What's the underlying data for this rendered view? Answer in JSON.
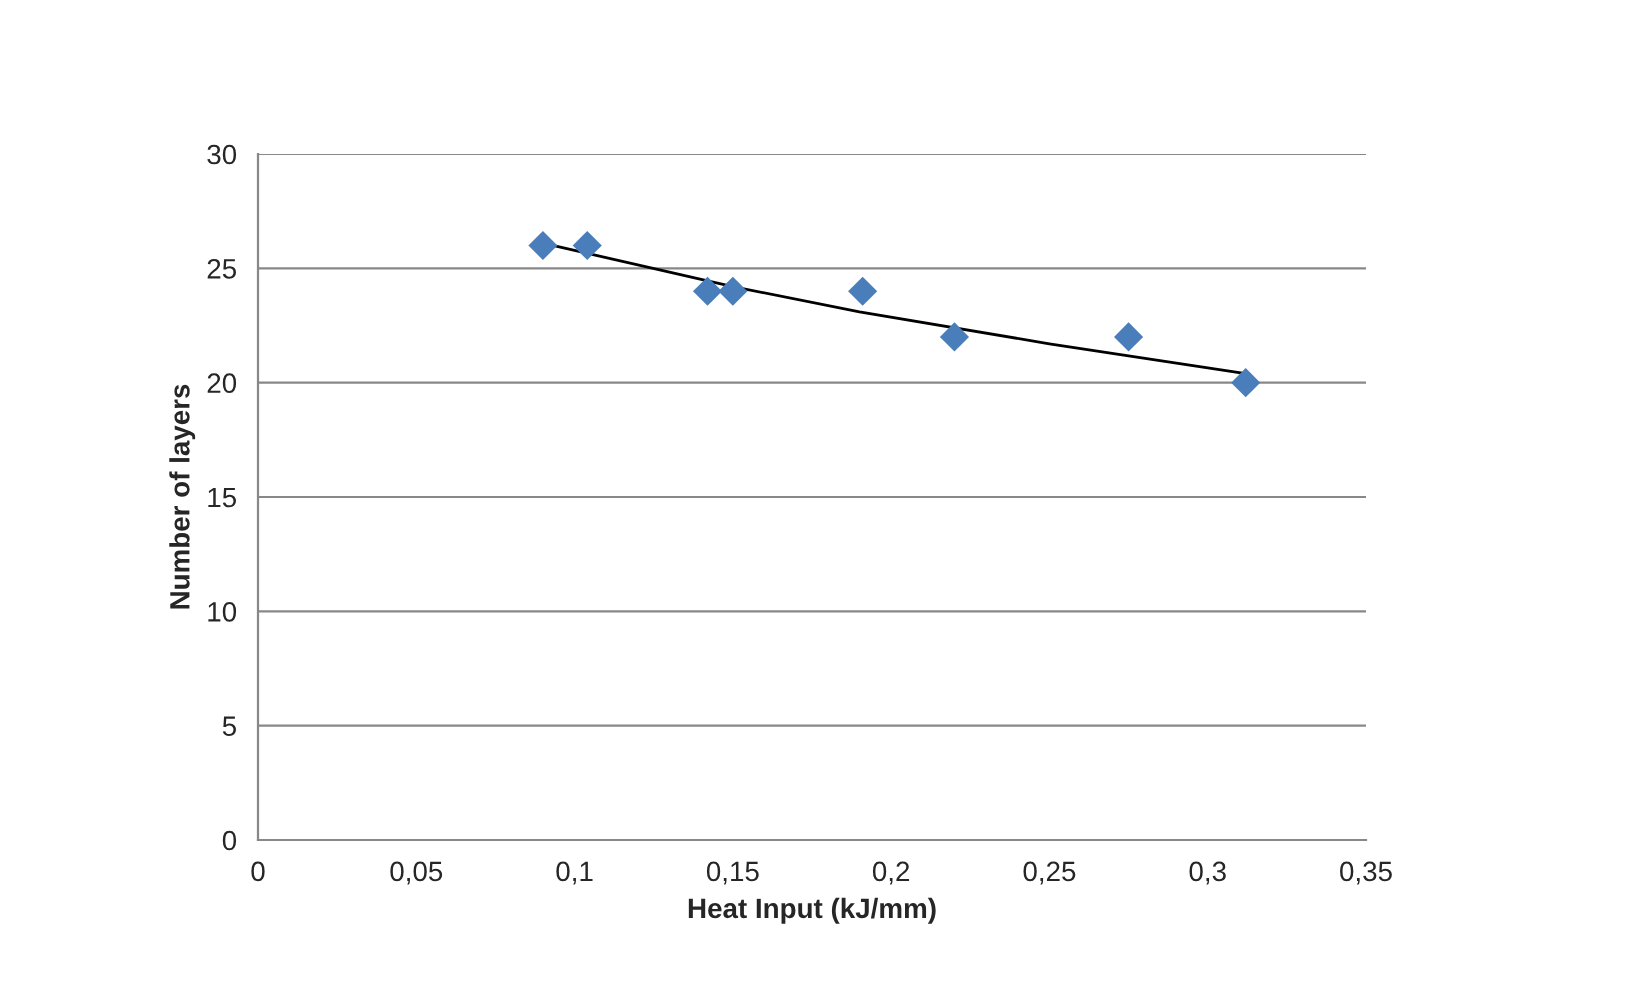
{
  "chart_data": {
    "type": "scatter",
    "xlabel": "Heat Input (kJ/mm)",
    "ylabel": "Number of layers",
    "xlim": [
      0,
      0.35
    ],
    "xticks": [
      {
        "value": 0,
        "label": "0"
      },
      {
        "value": 0.05,
        "label": "0,05"
      },
      {
        "value": 0.1,
        "label": "0,1"
      },
      {
        "value": 0.15,
        "label": "0,15"
      },
      {
        "value": 0.2,
        "label": "0,2"
      },
      {
        "value": 0.25,
        "label": "0,25"
      },
      {
        "value": 0.3,
        "label": "0,3"
      },
      {
        "value": 0.35,
        "label": "0,35"
      }
    ],
    "ylim": [
      0,
      30
    ],
    "yticks": [
      0,
      5,
      10,
      15,
      20,
      25,
      30
    ],
    "grid": "y",
    "marker": "diamond",
    "series": [
      {
        "color": "#4a7ebb",
        "x": [
          0.09,
          0.104,
          0.142,
          0.15,
          0.191,
          0.22,
          0.275,
          0.312
        ],
        "values": [
          26,
          26,
          24,
          24,
          24,
          22,
          22,
          20
        ]
      },
      {
        "type": "line",
        "color": "#000000",
        "marker": "none",
        "x": [
          0.09,
          0.15,
          0.19,
          0.25,
          0.312
        ],
        "values": [
          26.1,
          24.2,
          23.1,
          21.7,
          20.4
        ]
      }
    ]
  }
}
